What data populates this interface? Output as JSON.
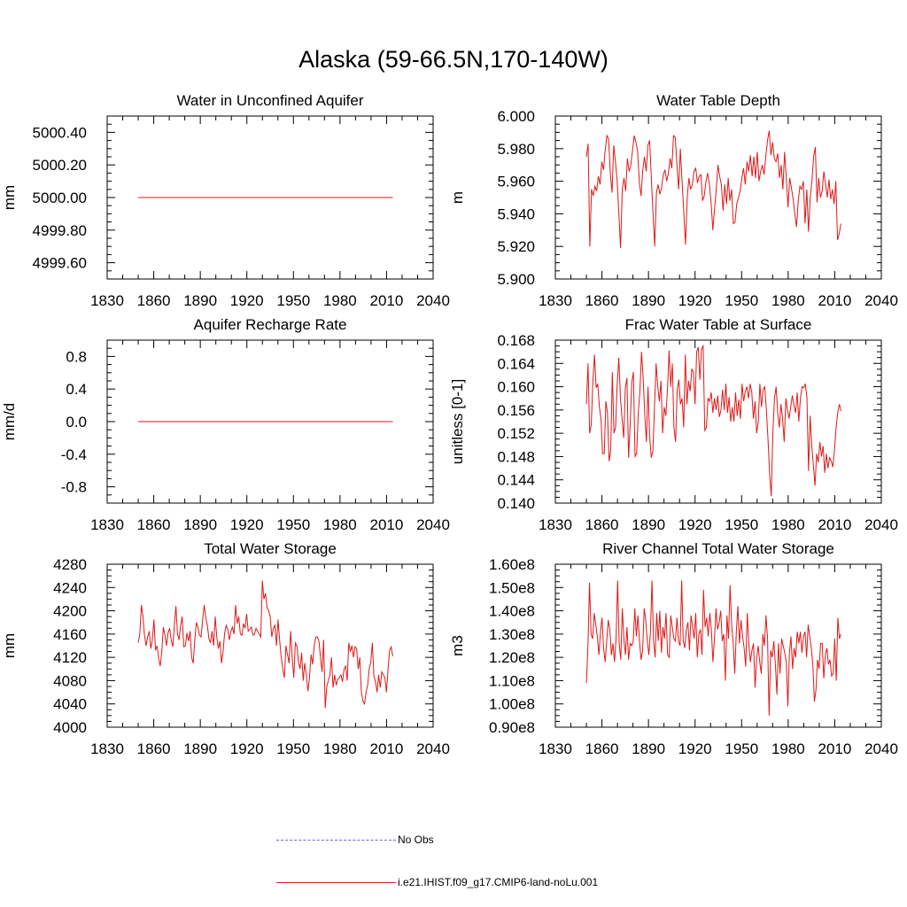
{
  "title": "Alaska (59-66.5N,170-140W)",
  "legend": [
    {
      "label": "No Obs",
      "color": "#6a6ab8",
      "style": "dashed"
    },
    {
      "label": "i.e21.IHIST.f09_g17.CMIP6-land-noLu.001",
      "color": "#e01818",
      "style": "solid"
    }
  ],
  "chart_data": [
    {
      "type": "line",
      "title": "Water in Unconfined Aquifer",
      "ylabel": "mm",
      "xlim": [
        1830,
        2040
      ],
      "ylim": [
        4999.5,
        5000.5
      ],
      "xticks": [
        1830,
        1860,
        1890,
        1920,
        1950,
        1980,
        2010,
        2040
      ],
      "yticks": [
        4999.6,
        4999.8,
        5000.0,
        5000.2,
        5000.4
      ],
      "ytick_labels": [
        "4999.60",
        "4999.80",
        "5000.00",
        "5000.20",
        "5000.40"
      ],
      "series": [
        {
          "color": "#e01818",
          "x_start": 1850,
          "x_end": 2014,
          "values": [
            5000.0,
            5000.0
          ]
        }
      ]
    },
    {
      "type": "line",
      "title": "Water Table Depth",
      "ylabel": "m",
      "xlim": [
        1830,
        2040
      ],
      "ylim": [
        5.9,
        6.0
      ],
      "xticks": [
        1830,
        1860,
        1890,
        1920,
        1950,
        1980,
        2010,
        2040
      ],
      "yticks": [
        5.9,
        5.92,
        5.94,
        5.96,
        5.98,
        6.0
      ],
      "ytick_labels": [
        "5.900",
        "5.920",
        "5.940",
        "5.960",
        "5.980",
        "6.000"
      ],
      "series": [
        {
          "color": "#e01818",
          "x_start": 1850,
          "x_end": 2014,
          "values": [
            5.975,
            5.983,
            5.92,
            5.955,
            5.951,
            5.957,
            5.954,
            5.963,
            5.958,
            5.972,
            5.967,
            5.979,
            5.988,
            5.986,
            5.965,
            5.953,
            5.982,
            5.972,
            5.96,
            5.94,
            5.919,
            5.955,
            5.962,
            5.954,
            5.974,
            5.966,
            5.97,
            5.979,
            5.988,
            5.984,
            5.978,
            5.959,
            5.951,
            5.967,
            5.975,
            5.966,
            5.982,
            5.985,
            5.962,
            5.94,
            5.92,
            5.953,
            5.958,
            5.952,
            5.956,
            5.964,
            5.967,
            5.96,
            5.965,
            5.974,
            5.968,
            5.988,
            5.987,
            5.97,
            5.955,
            5.98,
            5.96,
            5.941,
            5.921,
            5.95,
            5.962,
            5.955,
            5.958,
            5.966,
            5.968,
            5.959,
            5.963,
            5.964,
            5.948,
            5.951,
            5.96,
            5.965,
            5.958,
            5.947,
            5.93,
            5.943,
            5.955,
            5.97,
            5.963,
            5.958,
            5.942,
            5.958,
            5.946,
            5.962,
            5.948,
            5.955,
            5.934,
            5.935,
            5.946,
            5.95,
            5.954,
            5.962,
            5.968,
            5.958,
            5.972,
            5.966,
            5.976,
            5.963,
            5.975,
            5.962,
            5.978,
            5.96,
            5.966,
            5.97,
            5.964,
            5.975,
            5.985,
            5.991,
            5.976,
            5.984,
            5.974,
            5.972,
            5.977,
            5.962,
            5.97,
            5.955,
            5.978,
            5.962,
            5.944,
            5.962,
            5.956,
            5.949,
            5.94,
            5.932,
            5.948,
            5.957,
            5.955,
            5.96,
            5.934,
            5.955,
            5.929,
            5.95,
            5.96,
            5.975,
            5.981,
            5.947,
            5.962,
            5.95,
            5.954,
            5.966,
            5.958,
            5.95,
            5.961,
            5.949,
            5.955,
            5.946,
            5.96,
            5.924,
            5.928,
            5.934
          ]
        }
      ]
    },
    {
      "type": "line",
      "title": "Aquifer Recharge Rate",
      "ylabel": "mm/d",
      "xlim": [
        1830,
        2040
      ],
      "ylim": [
        -1.0,
        1.0
      ],
      "xticks": [
        1830,
        1860,
        1890,
        1920,
        1950,
        1980,
        2010,
        2040
      ],
      "yticks": [
        -0.8,
        -0.4,
        0.0,
        0.4,
        0.8
      ],
      "ytick_labels": [
        "-0.8",
        "-0.4",
        "0.0",
        "0.4",
        "0.8"
      ],
      "series": [
        {
          "color": "#e01818",
          "x_start": 1850,
          "x_end": 2014,
          "values": [
            0.0,
            0.0
          ]
        }
      ]
    },
    {
      "type": "line",
      "title": "Frac Water Table at Surface",
      "ylabel": "unitless [0-1]",
      "xlim": [
        1830,
        2040
      ],
      "ylim": [
        0.14,
        0.168
      ],
      "xticks": [
        1830,
        1860,
        1890,
        1920,
        1950,
        1980,
        2010,
        2040
      ],
      "yticks": [
        0.14,
        0.144,
        0.148,
        0.152,
        0.156,
        0.16,
        0.164,
        0.168
      ],
      "ytick_labels": [
        "0.140",
        "0.144",
        "0.148",
        "0.152",
        "0.156",
        "0.160",
        "0.164",
        "0.168"
      ],
      "series": [
        {
          "color": "#e01818",
          "x_start": 1850,
          "x_end": 2014,
          "values": [
            0.157,
            0.164,
            0.152,
            0.1535,
            0.161,
            0.1655,
            0.1598,
            0.1605,
            0.1565,
            0.1545,
            0.1485,
            0.1485,
            0.1575,
            0.1555,
            0.1472,
            0.149,
            0.1625,
            0.152,
            0.153,
            0.1605,
            0.165,
            0.158,
            0.1545,
            0.1512,
            0.1598,
            0.1615,
            0.1478,
            0.1535,
            0.1608,
            0.1625,
            0.148,
            0.1485,
            0.1555,
            0.1592,
            0.166,
            0.1615,
            0.1552,
            0.1505,
            0.16,
            0.1515,
            0.1478,
            0.149,
            0.1565,
            0.164,
            0.16,
            0.1575,
            0.161,
            0.152,
            0.1565,
            0.155,
            0.1595,
            0.1662,
            0.16,
            0.164,
            0.153,
            0.1505,
            0.1595,
            0.1612,
            0.157,
            0.158,
            0.153,
            0.1655,
            0.157,
            0.161,
            0.1592,
            0.163,
            0.1625,
            0.157,
            0.166,
            0.1668,
            0.1612,
            0.1665,
            0.167,
            0.1525,
            0.153,
            0.158,
            0.1575,
            0.159,
            0.1555,
            0.158,
            0.156,
            0.1585,
            0.1548,
            0.156,
            0.1595,
            0.156,
            0.1605,
            0.1555,
            0.1582,
            0.154,
            0.1565,
            0.154,
            0.159,
            0.155,
            0.1578,
            0.1545,
            0.1605,
            0.1575,
            0.1592,
            0.16,
            0.158,
            0.1605,
            0.159,
            0.1545,
            0.1575,
            0.152,
            0.154,
            0.1605,
            0.1565,
            0.1595,
            0.16,
            0.156,
            0.151,
            0.145,
            0.1412,
            0.152,
            0.158,
            0.16,
            0.1555,
            0.153,
            0.157,
            0.1545,
            0.1505,
            0.158,
            0.156,
            0.1545,
            0.1565,
            0.1585,
            0.1568,
            0.1555,
            0.159,
            0.154,
            0.158,
            0.16,
            0.1598,
            0.1605,
            0.1582,
            0.1455,
            0.155,
            0.1498,
            0.1465,
            0.143,
            0.1485,
            0.147,
            0.1505,
            0.148,
            0.1498,
            0.1452,
            0.1485,
            0.146,
            0.1478,
            0.1472,
            0.1462,
            0.149,
            0.153,
            0.1555,
            0.157,
            0.1558
          ]
        }
      ]
    },
    {
      "type": "line",
      "title": "Total Water Storage",
      "ylabel": "mm",
      "xlim": [
        1830,
        2040
      ],
      "ylim": [
        4000,
        4280
      ],
      "xticks": [
        1830,
        1860,
        1890,
        1920,
        1950,
        1980,
        2010,
        2040
      ],
      "yticks": [
        4000,
        4040,
        4080,
        4120,
        4160,
        4200,
        4240,
        4280
      ],
      "ytick_labels": [
        "4000",
        "4040",
        "4080",
        "4120",
        "4160",
        "4200",
        "4240",
        "4280"
      ],
      "series": [
        {
          "color": "#e01818",
          "x_start": 1850,
          "x_end": 2014,
          "values": [
            4145,
            4160,
            4210,
            4190,
            4158,
            4140,
            4155,
            4165,
            4135,
            4150,
            4185,
            4132,
            4140,
            4118,
            4105,
            4130,
            4172,
            4158,
            4140,
            4162,
            4170,
            4150,
            4138,
            4175,
            4208,
            4160,
            4150,
            4175,
            4190,
            4138,
            4140,
            4162,
            4148,
            4165,
            4120,
            4110,
            4150,
            4180,
            4172,
            4158,
            4155,
            4185,
            4210,
            4188,
            4175,
            4152,
            4145,
            4165,
            4140,
            4190,
            4155,
            4135,
            4148,
            4110,
            4130,
            4162,
            4175,
            4168,
            4150,
            4165,
            4172,
            4160,
            4210,
            4178,
            4190,
            4160,
            4158,
            4178,
            4170,
            4195,
            4165,
            4168,
            4172,
            4158,
            4160,
            4170,
            4165,
            4160,
            4155,
            4252,
            4220,
            4230,
            4205,
            4200,
            4190,
            4155,
            4170,
            4175,
            4140,
            4185,
            4150,
            4120,
            4100,
            4085,
            4140,
            4125,
            4110,
            4165,
            4120,
            4085,
            4145,
            4140,
            4112,
            4100,
            4128,
            4080,
            4110,
            4090,
            4062,
            4085,
            4125,
            4108,
            4140,
            4155,
            4155,
            4148,
            4120,
            4095,
            4150,
            4033,
            4070,
            4080,
            4090,
            4120,
            4068,
            4090,
            4072,
            4082,
            4085,
            4090,
            4078,
            4100,
            4105,
            4080,
            4145,
            4130,
            4140,
            4120,
            4138,
            4135,
            4100,
            4120,
            4060,
            4045,
            4040,
            4060,
            4072,
            4100,
            4112,
            4145,
            4088,
            4078,
            4060,
            4090,
            4068,
            4095,
            4090,
            4085,
            4060,
            4100,
            4132,
            4138,
            4122
          ]
        }
      ]
    },
    {
      "type": "line",
      "title": "River Channel Total Water Storage",
      "ylabel": "m3",
      "xlim": [
        1830,
        2040
      ],
      "ylim": [
        90000000,
        160000000
      ],
      "xticks": [
        1830,
        1860,
        1890,
        1920,
        1950,
        1980,
        2010,
        2040
      ],
      "yticks": [
        90000000,
        100000000,
        110000000,
        120000000,
        130000000,
        140000000,
        150000000,
        160000000
      ],
      "ytick_labels": [
        "0.90e8",
        "1.00e8",
        "1.10e8",
        "1.20e8",
        "1.30e8",
        "1.40e8",
        "1.50e8",
        "1.60e8"
      ],
      "series": [
        {
          "color": "#e01818",
          "x_start": 1850,
          "x_end": 2014,
          "values": [
            109000000,
            125000000,
            152000000,
            130000000,
            128000000,
            139000000,
            134000000,
            129000000,
            121000000,
            131000000,
            137000000,
            124000000,
            118000000,
            127000000,
            136000000,
            132000000,
            121000000,
            126000000,
            118000000,
            128000000,
            153000000,
            126000000,
            119000000,
            141000000,
            128000000,
            121000000,
            133000000,
            119000000,
            126000000,
            125000000,
            127000000,
            141000000,
            129000000,
            138000000,
            127000000,
            119000000,
            123000000,
            141000000,
            136000000,
            127000000,
            121000000,
            131000000,
            153000000,
            127000000,
            120000000,
            139000000,
            127000000,
            140000000,
            122000000,
            133000000,
            128000000,
            139000000,
            121000000,
            120000000,
            138000000,
            133000000,
            128000000,
            127000000,
            137000000,
            127000000,
            125000000,
            153000000,
            127000000,
            124000000,
            132000000,
            135000000,
            123000000,
            138000000,
            133000000,
            128000000,
            139000000,
            120000000,
            130000000,
            132000000,
            121000000,
            149000000,
            133000000,
            137000000,
            129000000,
            139000000,
            132000000,
            118000000,
            128000000,
            141000000,
            132000000,
            135000000,
            140000000,
            127000000,
            130000000,
            110000000,
            138000000,
            128000000,
            151000000,
            134000000,
            126000000,
            113000000,
            131000000,
            142000000,
            126000000,
            136000000,
            129000000,
            124000000,
            116000000,
            139000000,
            126000000,
            118000000,
            123000000,
            126000000,
            107000000,
            119000000,
            125000000,
            118000000,
            113000000,
            130000000,
            125000000,
            138000000,
            128000000,
            95000000,
            123000000,
            120000000,
            127000000,
            117000000,
            104000000,
            126000000,
            113000000,
            128000000,
            125000000,
            122000000,
            118000000,
            99000000,
            122000000,
            129000000,
            115000000,
            124000000,
            120000000,
            131000000,
            126000000,
            131000000,
            122000000,
            129000000,
            131000000,
            120000000,
            134000000,
            129000000,
            124000000,
            117000000,
            101000000,
            106000000,
            119000000,
            115000000,
            126000000,
            126000000,
            111000000,
            121000000,
            124000000,
            117000000,
            119000000,
            112000000,
            113000000,
            128000000,
            110000000,
            137000000,
            128000000,
            130000000
          ]
        }
      ]
    }
  ]
}
